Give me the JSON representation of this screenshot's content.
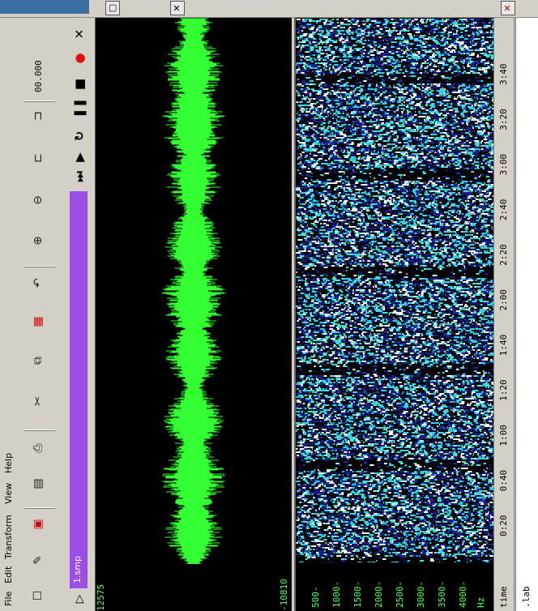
{
  "menu": [
    "File",
    "Edit",
    "Transform",
    "View",
    "Help"
  ],
  "toolbar": {
    "icons": [
      "new-file-icon",
      "open-file-icon",
      "save-icon",
      "print-icon",
      "import-icon",
      "cut-icon",
      "copy-icon",
      "paste-icon",
      "undo-icon",
      "zoom-in-icon",
      "zoom-out-icon",
      "zoom-fit-icon",
      "zoom-selection-icon"
    ],
    "zoom_value": "00.000"
  },
  "transport": {
    "file_label": "1.smp",
    "buttons": [
      "skip-end-icon",
      "play-icon",
      "loop-icon",
      "pause-icon",
      "stop-icon",
      "record-icon",
      "close-icon"
    ]
  },
  "waveform": {
    "max_label": "12575",
    "min_label": "-10810",
    "color": "#33ff33"
  },
  "spectrogram": {
    "unit": "Hz",
    "freq_labels": [
      "4000-",
      "3500-",
      "3000-",
      "2500-",
      "2000-",
      "1500-",
      "1000-",
      "500-"
    ]
  },
  "timeline": {
    "label": "time",
    "ticks": [
      "0:20",
      "0:40",
      "1:00",
      "1:20",
      "1:40",
      "2:00",
      "2:20",
      "2:40",
      "3:00",
      "3:20",
      "3:40"
    ]
  },
  "labels_row": {
    "label": ".lab"
  },
  "colors": {
    "bg": "#000000",
    "wave": "#33ff33",
    "file_bar": "#9b4fe6",
    "spec_blue": "#1f2aa8",
    "spec_cyan": "#4fe0d0"
  }
}
